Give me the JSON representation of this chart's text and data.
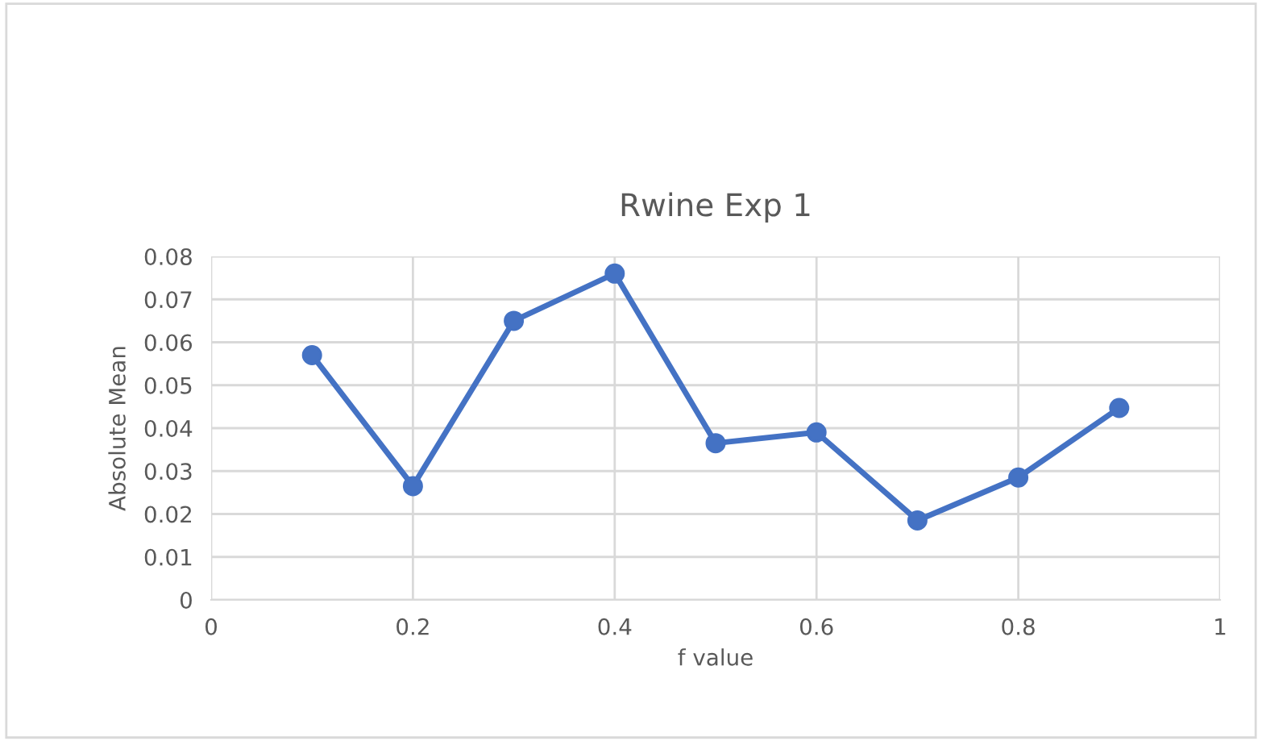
{
  "chart_data": {
    "type": "line",
    "title": "Rwine Exp 1",
    "xlabel": "f value",
    "ylabel": "Absolute Mean",
    "x": [
      0.1,
      0.2,
      0.3,
      0.4,
      0.5,
      0.6,
      0.7,
      0.8,
      0.9
    ],
    "series": [
      {
        "color": "#4472c4",
        "values": [
          0.057,
          0.0265,
          0.065,
          0.076,
          0.0365,
          0.039,
          0.0185,
          0.0285,
          0.0447
        ]
      }
    ],
    "xlim": [
      0,
      1
    ],
    "xticks": [
      0,
      0.2,
      0.4,
      0.6,
      0.8,
      1
    ],
    "ylim": [
      0,
      0.08
    ],
    "yticks": [
      0,
      0.01,
      0.02,
      0.03,
      0.04,
      0.05,
      0.06,
      0.07,
      0.08
    ],
    "grid": true,
    "marker": "circle",
    "line_style": "solid"
  }
}
